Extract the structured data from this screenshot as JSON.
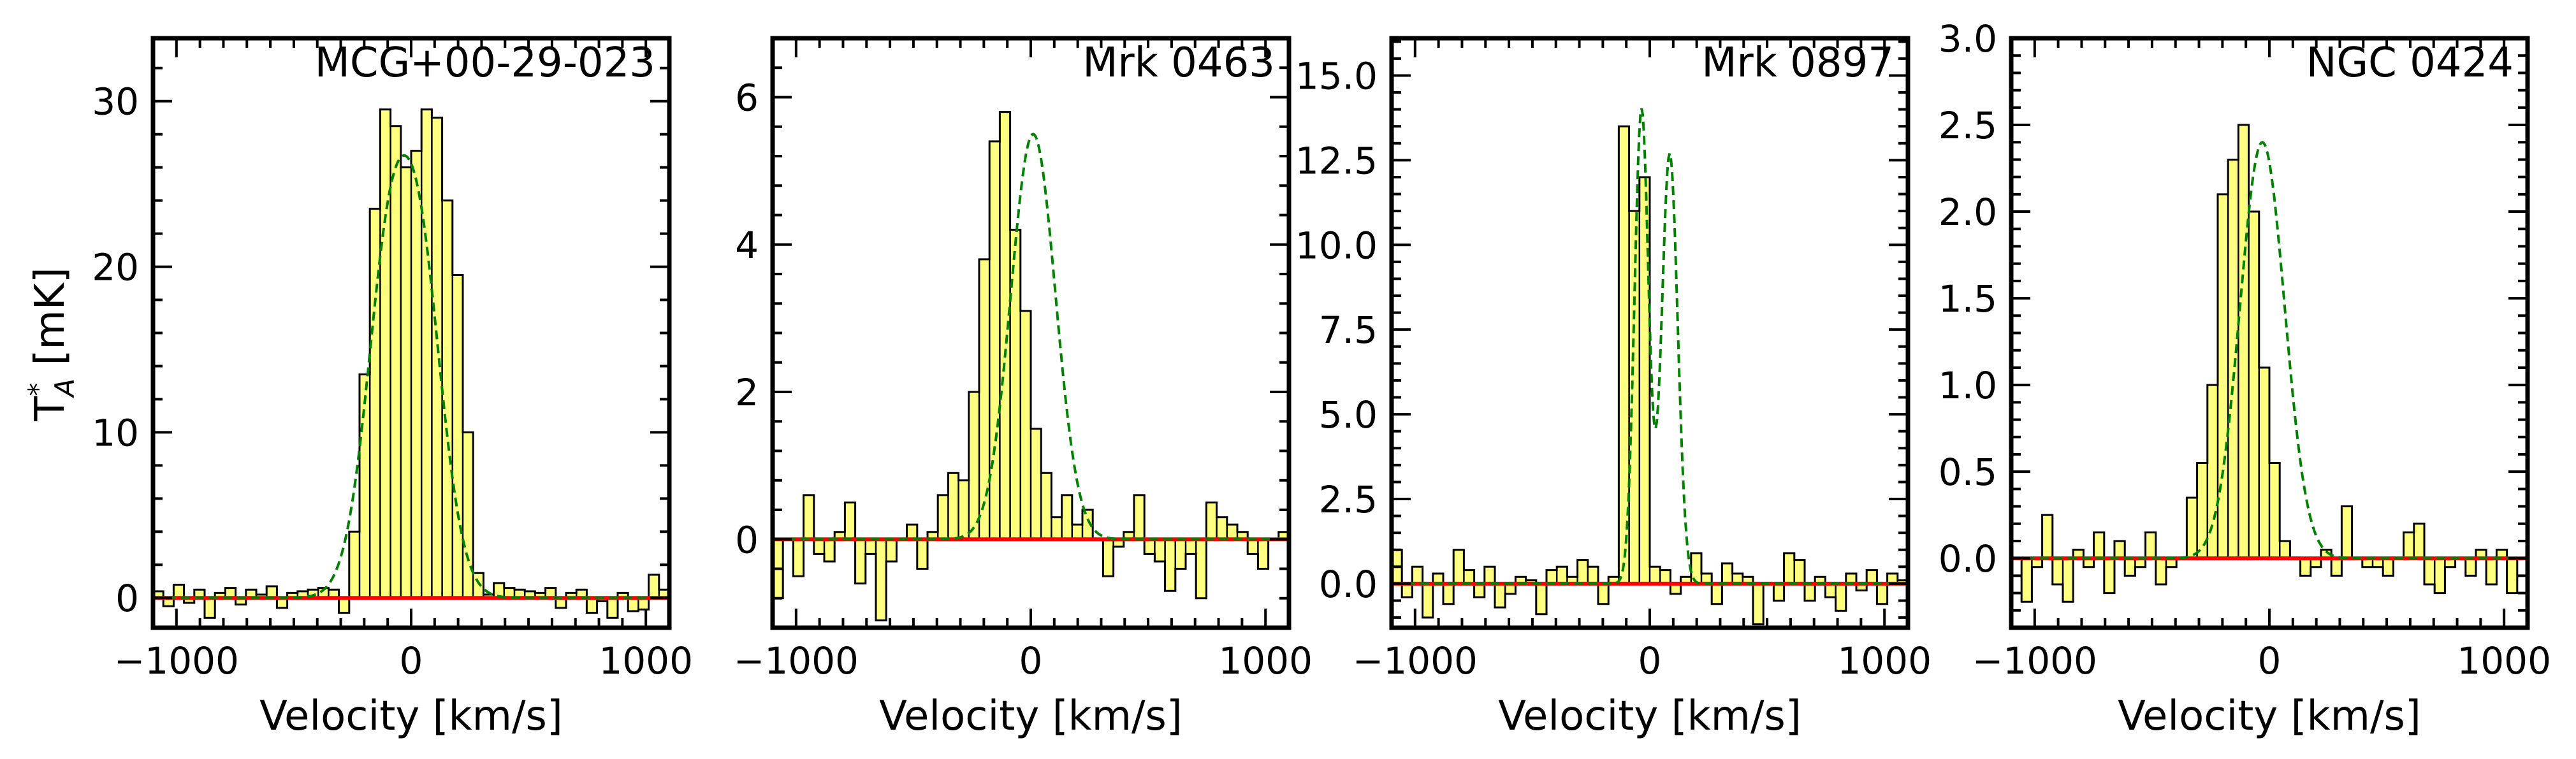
{
  "figure": {
    "ylabel_main": "T",
    "ylabel_super": "*",
    "ylabel_sub": "A",
    "ylabel_unit": " [mK]"
  },
  "colors": {
    "fill": "#ffff80",
    "edge": "#000000",
    "fit": "#008000",
    "baseline": "#ff0000",
    "frame": "#000000"
  },
  "chart_data": [
    {
      "type": "histogram",
      "title": "MCG+00-29-023",
      "xlabel": "Velocity [km/s]",
      "ylabel": "T*A [mK]",
      "xlim": [
        -1100,
        1100
      ],
      "ylim": [
        -1.8,
        33.8
      ],
      "xticks": [
        -1000,
        0,
        1000
      ],
      "xtick_labels": [
        "−1000",
        "0",
        "1000"
      ],
      "yticks": [
        0,
        10,
        20,
        30
      ],
      "ytick_labels": [
        "0",
        "10",
        "20",
        "30"
      ],
      "bin_width": 44,
      "bin_start": -1100,
      "values": [
        0.4,
        -0.5,
        0.8,
        -0.3,
        0.5,
        -1.2,
        0.3,
        0.6,
        -0.4,
        0.5,
        0.2,
        0.7,
        -0.6,
        0.3,
        0.4,
        0.5,
        0.6,
        0.5,
        -0.9,
        4.0,
        13.5,
        23.5,
        29.5,
        28.5,
        26.0,
        27.0,
        29.5,
        29.0,
        24.0,
        19.5,
        10.0,
        1.5,
        0.2,
        0.9,
        0.6,
        0.5,
        0.4,
        0.3,
        0.6,
        -0.6,
        0.3,
        0.5,
        -0.9,
        -0.2,
        -1.2,
        0.3,
        -0.8,
        -0.7,
        1.4,
        0.5
      ],
      "fit": {
        "type": "double-horn",
        "amplitude": 30.2,
        "center": -30,
        "sigma": 118,
        "horn_depth": 0.21,
        "horn_separation": 205
      },
      "baseline": 0
    },
    {
      "type": "histogram",
      "title": "Mrk 0463",
      "xlabel": "Velocity [km/s]",
      "ylabel": "",
      "xlim": [
        -1100,
        1100
      ],
      "ylim": [
        -1.2,
        6.8
      ],
      "xticks": [
        -1000,
        0,
        1000
      ],
      "xtick_labels": [
        "−1000",
        "0",
        "1000"
      ],
      "yticks": [
        0,
        2,
        4,
        6
      ],
      "ytick_labels": [
        "0",
        "2",
        "4",
        "6"
      ],
      "bin_width": 44,
      "bin_start": -1100,
      "values": [
        -0.8,
        0.0,
        -0.5,
        0.6,
        -0.2,
        -0.3,
        0.1,
        0.5,
        -0.6,
        -0.2,
        -1.1,
        -0.3,
        0.0,
        0.2,
        -0.4,
        0.1,
        0.6,
        0.9,
        0.8,
        2.0,
        3.8,
        5.4,
        5.8,
        4.2,
        3.1,
        1.5,
        0.9,
        0.3,
        0.6,
        0.2,
        0.4,
        0.0,
        -0.5,
        -0.1,
        0.1,
        0.6,
        -0.2,
        -0.3,
        -0.7,
        -0.4,
        -0.2,
        -0.8,
        0.5,
        0.3,
        0.2,
        0.1,
        -0.2,
        -0.4,
        0.0,
        0.1
      ],
      "fit": {
        "type": "gaussian",
        "amplitude": 5.5,
        "center": 10,
        "sigma": 95
      },
      "baseline": 0
    },
    {
      "type": "histogram",
      "title": "Mrk 0897",
      "xlabel": "Velocity [km/s]",
      "ylabel": "",
      "xlim": [
        -1100,
        1100
      ],
      "ylim": [
        -1.3,
        16.1
      ],
      "xticks": [
        -1000,
        0,
        1000
      ],
      "xtick_labels": [
        "−1000",
        "0",
        "1000"
      ],
      "yticks": [
        0.0,
        2.5,
        5.0,
        7.5,
        10.0,
        12.5,
        15.0
      ],
      "ytick_labels": [
        "0.0",
        "2.5",
        "5.0",
        "7.5",
        "10.0",
        "12.5",
        "15.0"
      ],
      "bin_width": 44,
      "bin_start": -1100,
      "values": [
        1.0,
        -0.4,
        0.5,
        -1.0,
        0.3,
        -0.6,
        1.0,
        0.4,
        -0.4,
        0.5,
        -0.7,
        -0.3,
        0.2,
        0.1,
        -0.9,
        0.4,
        0.5,
        0.2,
        0.7,
        0.5,
        -0.6,
        0.2,
        13.5,
        11.0,
        12.0,
        0.5,
        0.4,
        -0.3,
        0.2,
        0.9,
        0.3,
        -0.6,
        0.6,
        0.3,
        0.2,
        -1.2,
        0.0,
        -0.5,
        0.9,
        0.7,
        -0.5,
        0.2,
        -0.4,
        -0.8,
        0.3,
        -0.2,
        0.4,
        -0.6,
        0.3,
        0.1
      ],
      "fit": {
        "type": "double-peak",
        "amplitude1": 14.0,
        "center1": -35,
        "sigma1": 30,
        "amplitude2": 12.7,
        "center2": 85,
        "sigma2": 34
      },
      "baseline": 0
    },
    {
      "type": "histogram",
      "title": "NGC 0424",
      "xlabel": "Velocity [km/s]",
      "ylabel": "",
      "xlim": [
        -1100,
        1100
      ],
      "ylim": [
        -0.4,
        3.0
      ],
      "xticks": [
        -1000,
        0,
        1000
      ],
      "xtick_labels": [
        "−1000",
        "0",
        "1000"
      ],
      "yticks": [
        0.0,
        0.5,
        1.0,
        1.5,
        2.0,
        2.5,
        3.0
      ],
      "ytick_labels": [
        "0.0",
        "0.5",
        "1.0",
        "1.5",
        "2.0",
        "2.5",
        "3.0"
      ],
      "bin_width": 44,
      "bin_start": -1100,
      "values": [
        0.0,
        -0.25,
        -0.05,
        0.25,
        -0.15,
        -0.25,
        0.05,
        -0.05,
        0.15,
        -0.2,
        0.1,
        -0.1,
        -0.05,
        0.15,
        -0.15,
        -0.05,
        0.0,
        0.35,
        0.55,
        1.0,
        2.1,
        2.3,
        2.5,
        2.0,
        1.1,
        0.55,
        0.1,
        0.0,
        -0.1,
        -0.05,
        0.05,
        -0.1,
        0.3,
        0.0,
        -0.05,
        -0.05,
        -0.1,
        0.0,
        0.15,
        0.2,
        -0.15,
        -0.2,
        -0.05,
        0.0,
        -0.1,
        0.05,
        -0.15,
        0.05,
        -0.2,
        0.0
      ],
      "fit": {
        "type": "gaussian",
        "amplitude": 2.4,
        "center": -30,
        "sigma": 95
      },
      "baseline": 0
    }
  ]
}
